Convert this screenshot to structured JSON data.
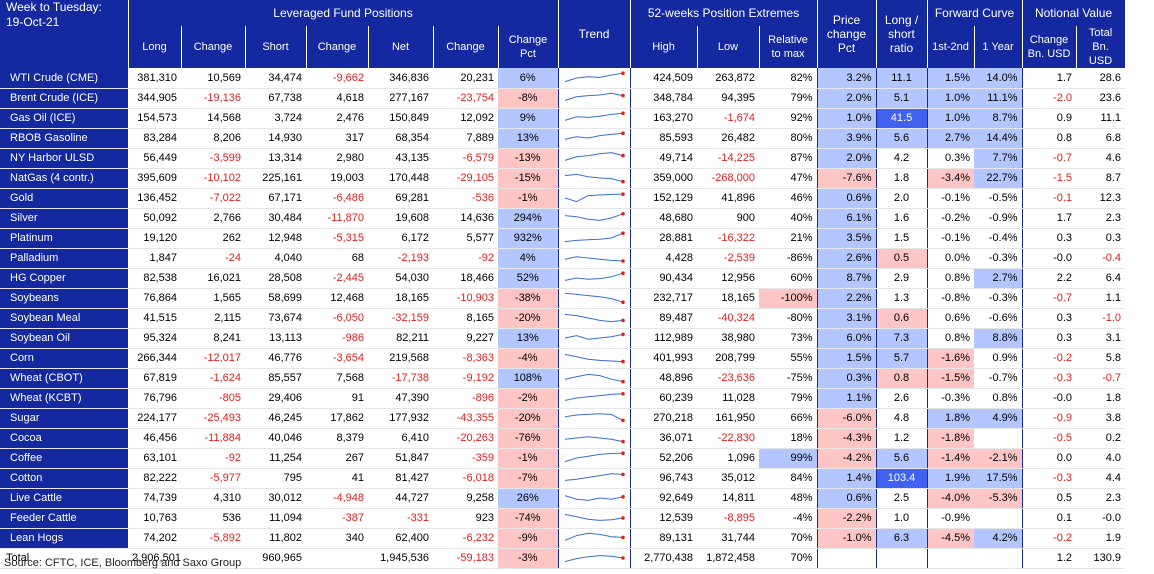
{
  "header": {
    "week_label": "Week to Tuesday:",
    "date": "19-Oct-21",
    "group_leveraged": "Leveraged Fund Positions",
    "group_extremes": "52-weeks Position Extremes",
    "group_forward": "Forward Curve",
    "group_notional": "Notional Value",
    "col_long": "Long",
    "col_change": "Change",
    "col_short": "Short",
    "col_change2": "Change",
    "col_net": "Net",
    "col_change3": "Change",
    "col_change_pct": "Change Pct",
    "col_trend": "Trend",
    "col_high": "High",
    "col_low": "Low",
    "col_relative": "Relative to max",
    "col_price_change": "Price change Pct",
    "col_ratio": "Long / short ratio",
    "col_fc1": "1st-2nd",
    "col_fc2": "1 Year",
    "col_nv_change": "Change Bn. USD",
    "col_nv_total": "Total Bn. USD"
  },
  "colors": {
    "header_bg": "#1428a0",
    "neg_text": "#e02020",
    "pos_fill": "#b4c6ff",
    "neg_fill": "#ffc4c4",
    "strong_pos_fill": "#3f63f0",
    "trend_dot": "#e02020",
    "trend_line": "#3a6fd0"
  },
  "rows": [
    {
      "name": "WTI Crude (CME)",
      "long": "381,310",
      "chg": "10,569",
      "short": "34,474",
      "chg2": "-9,662",
      "net": "346,836",
      "chg3": "20,231",
      "pct": "6%",
      "high": "424,509",
      "low": "263,872",
      "rel": "82%",
      "price": "3.2%",
      "ratio": "11.1",
      "fc1": "1.5%",
      "fc2": "14.0%",
      "nvc": "1.7",
      "nvt": "28.6",
      "trend": [
        0.2,
        0.5,
        0.6,
        0.55,
        0.75,
        0.9
      ]
    },
    {
      "name": "Brent Crude (ICE)",
      "long": "344,905",
      "chg": "-19,136",
      "short": "67,738",
      "chg2": "4,618",
      "net": "277,167",
      "chg3": "-23,754",
      "pct": "-8%",
      "high": "348,784",
      "low": "94,395",
      "rel": "79%",
      "price": "2.0%",
      "ratio": "5.1",
      "fc1": "1.0%",
      "fc2": "11.1%",
      "nvc": "-2.0",
      "nvt": "23.6",
      "trend": [
        0.3,
        0.6,
        0.7,
        0.75,
        0.9,
        0.7
      ]
    },
    {
      "name": "Gas Oil (ICE)",
      "long": "154,573",
      "chg": "14,568",
      "short": "3,724",
      "chg2": "2,476",
      "net": "150,849",
      "chg3": "12,092",
      "pct": "9%",
      "high": "163,270",
      "low": "-1,674",
      "rel": "92%",
      "price": "1.0%",
      "ratio": "41.5",
      "fc1": "1.0%",
      "fc2": "8.7%",
      "nvc": "0.9",
      "nvt": "11.1",
      "trend": [
        0.3,
        0.6,
        0.55,
        0.65,
        0.8,
        0.9
      ]
    },
    {
      "name": "RBOB Gasoline",
      "long": "83,284",
      "chg": "8,206",
      "short": "14,930",
      "chg2": "317",
      "net": "68,354",
      "chg3": "7,889",
      "pct": "13%",
      "high": "85,593",
      "low": "26,482",
      "rel": "80%",
      "price": "3.9%",
      "ratio": "5.6",
      "fc1": "2.7%",
      "fc2": "14.4%",
      "nvc": "0.8",
      "nvt": "6.8",
      "trend": [
        0.4,
        0.6,
        0.5,
        0.7,
        0.8,
        0.9
      ]
    },
    {
      "name": "NY Harbor ULSD",
      "long": "56,449",
      "chg": "-3,599",
      "short": "13,314",
      "chg2": "2,980",
      "net": "43,135",
      "chg3": "-6,579",
      "pct": "-13%",
      "high": "49,714",
      "low": "-14,225",
      "rel": "87%",
      "price": "2.0%",
      "ratio": "4.2",
      "fc1": "0.3%",
      "fc2": "7.7%",
      "nvc": "-0.7",
      "nvt": "4.6",
      "trend": [
        0.3,
        0.6,
        0.7,
        0.85,
        0.95,
        0.7
      ]
    },
    {
      "name": "NatGas (4 contr.)",
      "long": "395,609",
      "chg": "-10,102",
      "short": "225,161",
      "chg2": "19,003",
      "net": "170,448",
      "chg3": "-29,105",
      "pct": "-15%",
      "high": "359,000",
      "low": "-268,000",
      "rel": "47%",
      "price": "-7.6%",
      "ratio": "1.8",
      "fc1": "-3.4%",
      "fc2": "22.7%",
      "nvc": "-1.5",
      "nvt": "8.7",
      "trend": [
        0.7,
        0.8,
        0.6,
        0.5,
        0.45,
        0.2
      ]
    },
    {
      "name": "Gold",
      "long": "136,452",
      "chg": "-7,022",
      "short": "67,171",
      "chg2": "-6,486",
      "net": "69,281",
      "chg3": "-536",
      "pct": "-1%",
      "high": "152,129",
      "low": "41,896",
      "rel": "46%",
      "price": "0.6%",
      "ratio": "2.0",
      "fc1": "-0.1%",
      "fc2": "-0.5%",
      "nvc": "-0.1",
      "nvt": "12.3",
      "trend": [
        0.5,
        0.2,
        0.7,
        0.75,
        0.8,
        0.82
      ]
    },
    {
      "name": "Silver",
      "long": "50,092",
      "chg": "2,766",
      "short": "30,484",
      "chg2": "-11,870",
      "net": "19,608",
      "chg3": "14,636",
      "pct": "294%",
      "high": "48,680",
      "low": "900",
      "rel": "40%",
      "price": "6.1%",
      "ratio": "1.6",
      "fc1": "-0.2%",
      "fc2": "-0.9%",
      "nvc": "1.7",
      "nvt": "2.3",
      "trend": [
        0.7,
        0.6,
        0.4,
        0.3,
        0.5,
        0.85
      ]
    },
    {
      "name": "Platinum",
      "long": "19,120",
      "chg": "262",
      "short": "12,948",
      "chg2": "-5,315",
      "net": "6,172",
      "chg3": "5,577",
      "pct": "932%",
      "high": "28,881",
      "low": "-16,322",
      "rel": "21%",
      "price": "3.5%",
      "ratio": "1.5",
      "fc1": "-0.1%",
      "fc2": "-0.4%",
      "nvc": "0.3",
      "nvt": "0.3",
      "trend": [
        0.2,
        0.3,
        0.35,
        0.4,
        0.5,
        0.9
      ]
    },
    {
      "name": "Palladium",
      "long": "1,847",
      "chg": "-24",
      "short": "4,040",
      "chg2": "68",
      "net": "-2,193",
      "chg3": "-92",
      "pct": "4%",
      "high": "4,428",
      "low": "-2,539",
      "rel": "-86%",
      "price": "2.6%",
      "ratio": "0.5",
      "fc1": "0.0%",
      "fc2": "-0.3%",
      "nvc": "-0.0",
      "nvt": "-0.4",
      "trend": [
        0.4,
        0.6,
        0.5,
        0.4,
        0.3,
        0.25
      ]
    },
    {
      "name": "HG Copper",
      "long": "82,538",
      "chg": "16,021",
      "short": "28,508",
      "chg2": "-2,445",
      "net": "54,030",
      "chg3": "18,466",
      "pct": "52%",
      "high": "90,434",
      "low": "12,956",
      "rel": "60%",
      "price": "8.7%",
      "ratio": "2.9",
      "fc1": "0.8%",
      "fc2": "2.7%",
      "nvc": "2.2",
      "nvt": "6.4",
      "trend": [
        0.3,
        0.5,
        0.4,
        0.45,
        0.6,
        0.9
      ]
    },
    {
      "name": "Soybeans",
      "long": "76,864",
      "chg": "1,565",
      "short": "58,699",
      "chg2": "12,468",
      "net": "18,165",
      "chg3": "-10,903",
      "pct": "-38%",
      "high": "232,717",
      "low": "18,165",
      "rel": "-100%",
      "price": "2.2%",
      "ratio": "1.3",
      "fc1": "-0.8%",
      "fc2": "-0.3%",
      "nvc": "-0.7",
      "nvt": "1.1",
      "trend": [
        0.9,
        0.8,
        0.7,
        0.6,
        0.45,
        0.15
      ]
    },
    {
      "name": "Soybean Meal",
      "long": "41,515",
      "chg": "2,115",
      "short": "73,674",
      "chg2": "-6,050",
      "net": "-32,159",
      "chg3": "8,165",
      "pct": "-20%",
      "high": "89,487",
      "low": "-40,324",
      "rel": "-80%",
      "price": "3.1%",
      "ratio": "0.6",
      "fc1": "0.6%",
      "fc2": "-0.6%",
      "nvc": "0.3",
      "nvt": "-1.0",
      "trend": [
        0.8,
        0.7,
        0.5,
        0.3,
        0.2,
        0.3
      ]
    },
    {
      "name": "Soybean Oil",
      "long": "95,324",
      "chg": "8,241",
      "short": "13,113",
      "chg2": "-986",
      "net": "82,211",
      "chg3": "9,227",
      "pct": "13%",
      "high": "112,989",
      "low": "38,980",
      "rel": "73%",
      "price": "6.0%",
      "ratio": "7.3",
      "fc1": "0.8%",
      "fc2": "8.8%",
      "nvc": "0.3",
      "nvt": "3.1",
      "trend": [
        0.5,
        0.7,
        0.4,
        0.5,
        0.6,
        0.8
      ]
    },
    {
      "name": "Corn",
      "long": "266,344",
      "chg": "-12,017",
      "short": "46,776",
      "chg2": "-3,654",
      "net": "219,568",
      "chg3": "-8,363",
      "pct": "-4%",
      "high": "401,993",
      "low": "208,799",
      "rel": "55%",
      "price": "1.5%",
      "ratio": "5.7",
      "fc1": "-1.6%",
      "fc2": "0.9%",
      "nvc": "-0.2",
      "nvt": "5.8",
      "trend": [
        0.8,
        0.6,
        0.4,
        0.3,
        0.25,
        0.2
      ]
    },
    {
      "name": "Wheat (CBOT)",
      "long": "67,819",
      "chg": "-1,624",
      "short": "85,557",
      "chg2": "7,568",
      "net": "-17,738",
      "chg3": "-9,192",
      "pct": "108%",
      "high": "48,896",
      "low": "-23,636",
      "rel": "-75%",
      "price": "0.3%",
      "ratio": "0.8",
      "fc1": "-1.5%",
      "fc2": "-0.7%",
      "nvc": "-0.3",
      "nvt": "-0.7",
      "trend": [
        0.4,
        0.6,
        0.8,
        0.7,
        0.4,
        0.2
      ]
    },
    {
      "name": "Wheat (KCBT)",
      "long": "76,796",
      "chg": "-805",
      "short": "29,406",
      "chg2": "91",
      "net": "47,390",
      "chg3": "-896",
      "pct": "-2%",
      "high": "60,239",
      "low": "11,028",
      "rel": "79%",
      "price": "1.1%",
      "ratio": "2.6",
      "fc1": "-0.3%",
      "fc2": "0.8%",
      "nvc": "-0.0",
      "nvt": "1.8",
      "trend": [
        0.3,
        0.5,
        0.6,
        0.7,
        0.8,
        0.85
      ]
    },
    {
      "name": "Sugar",
      "long": "224,177",
      "chg": "-25,493",
      "short": "46,245",
      "chg2": "17,862",
      "net": "177,932",
      "chg3": "-43,355",
      "pct": "-20%",
      "high": "270,218",
      "low": "161,950",
      "rel": "66%",
      "price": "-6.0%",
      "ratio": "4.8",
      "fc1": "1.8%",
      "fc2": "4.9%",
      "nvc": "-0.9",
      "nvt": "3.8",
      "trend": [
        0.6,
        0.75,
        0.8,
        0.85,
        0.8,
        0.3
      ]
    },
    {
      "name": "Cocoa",
      "long": "46,456",
      "chg": "-11,884",
      "short": "40,046",
      "chg2": "8,379",
      "net": "6,410",
      "chg3": "-20,263",
      "pct": "-76%",
      "high": "36,071",
      "low": "-22,830",
      "rel": "18%",
      "price": "-4.3%",
      "ratio": "1.2",
      "fc1": "-1.8%",
      "fc2": "",
      "nvc": "-0.5",
      "nvt": "0.2",
      "trend": [
        0.4,
        0.5,
        0.6,
        0.5,
        0.4,
        0.2
      ]
    },
    {
      "name": "Coffee",
      "long": "63,101",
      "chg": "-92",
      "short": "11,254",
      "chg2": "267",
      "net": "51,847",
      "chg3": "-359",
      "pct": "-1%",
      "high": "52,206",
      "low": "1,096",
      "rel": "99%",
      "price": "-4.2%",
      "ratio": "5.6",
      "fc1": "-1.4%",
      "fc2": "-2.1%",
      "nvc": "0.0",
      "nvt": "4.0",
      "trend": [
        0.2,
        0.5,
        0.65,
        0.8,
        0.88,
        0.9
      ]
    },
    {
      "name": "Cotton",
      "long": "82,222",
      "chg": "-5,977",
      "short": "795",
      "chg2": "41",
      "net": "81,427",
      "chg3": "-6,018",
      "pct": "-7%",
      "high": "96,743",
      "low": "35,012",
      "rel": "84%",
      "price": "1.4%",
      "ratio": "103.4",
      "fc1": "1.9%",
      "fc2": "17.5%",
      "nvc": "-0.3",
      "nvt": "4.4",
      "trend": [
        0.3,
        0.4,
        0.55,
        0.7,
        0.85,
        0.8
      ]
    },
    {
      "name": "Live Cattle",
      "long": "74,739",
      "chg": "4,310",
      "short": "30,012",
      "chg2": "-4,948",
      "net": "44,727",
      "chg3": "9,258",
      "pct": "26%",
      "high": "92,649",
      "low": "14,811",
      "rel": "48%",
      "price": "0.6%",
      "ratio": "2.5",
      "fc1": "-4.0%",
      "fc2": "-5.3%",
      "nvc": "0.5",
      "nvt": "2.3",
      "trend": [
        0.7,
        0.4,
        0.3,
        0.5,
        0.4,
        0.6
      ]
    },
    {
      "name": "Feeder Cattle",
      "long": "10,763",
      "chg": "536",
      "short": "11,094",
      "chg2": "-387",
      "net": "-331",
      "chg3": "923",
      "pct": "-74%",
      "high": "12,539",
      "low": "-8,895",
      "rel": "-4%",
      "price": "-2.2%",
      "ratio": "1.0",
      "fc1": "-0.9%",
      "fc2": "",
      "nvc": "0.1",
      "nvt": "-0.0",
      "trend": [
        0.8,
        0.6,
        0.4,
        0.3,
        0.35,
        0.5
      ]
    },
    {
      "name": "Lean Hogs",
      "long": "74,202",
      "chg": "-5,892",
      "short": "11,802",
      "chg2": "340",
      "net": "62,400",
      "chg3": "-6,232",
      "pct": "-9%",
      "high": "89,131",
      "low": "31,744",
      "rel": "70%",
      "price": "-1.0%",
      "ratio": "6.3",
      "fc1": "-4.5%",
      "fc2": "4.2%",
      "nvc": "-0.2",
      "nvt": "1.9",
      "trend": [
        0.3,
        0.7,
        0.9,
        0.8,
        0.6,
        0.55
      ]
    }
  ],
  "total": {
    "name": "Total",
    "long": "2,906,501",
    "chg": "",
    "short": "960,965",
    "chg2": "",
    "net": "1,945,536",
    "chg3": "-59,183",
    "pct": "-3%",
    "high": "2,770,438",
    "low": "1,872,458",
    "rel": "70%",
    "price": "",
    "ratio": "",
    "fc1": "",
    "fc2": "",
    "nvc": "1.2",
    "nvt": "130.9",
    "trend": [
      0.2,
      0.45,
      0.6,
      0.7,
      0.65,
      0.5
    ]
  },
  "footer": {
    "source": "Source: CFTC, ICE, Bloomberg and Saxo Group"
  }
}
